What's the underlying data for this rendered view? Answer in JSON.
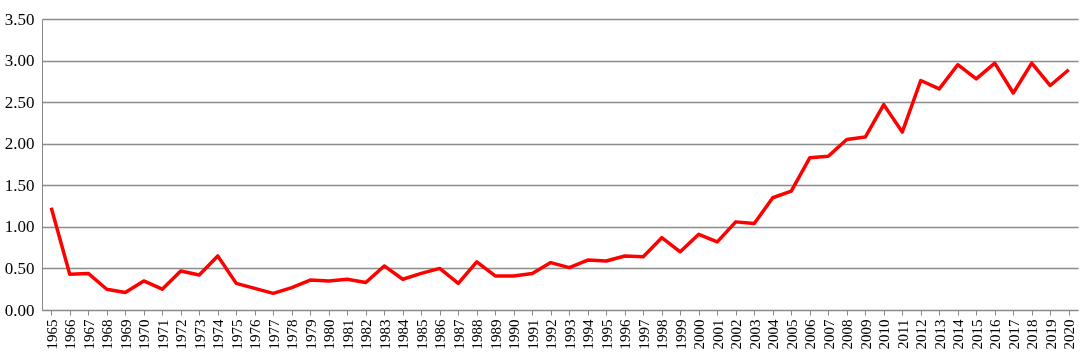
{
  "chart_data": {
    "type": "line",
    "categories": [
      "1965",
      "1966",
      "1967",
      "1968",
      "1969",
      "1970",
      "1971",
      "1972",
      "1973",
      "1974",
      "1975",
      "1976",
      "1977",
      "1978",
      "1979",
      "1980",
      "1981",
      "1982",
      "1983",
      "1984",
      "1985",
      "1986",
      "1987",
      "1988",
      "1989",
      "1990",
      "1991",
      "1992",
      "1993",
      "1994",
      "1995",
      "1996",
      "1997",
      "1998",
      "1999",
      "2000",
      "2001",
      "2002",
      "2003",
      "2004",
      "2005",
      "2006",
      "2007",
      "2008",
      "2009",
      "2010",
      "2011",
      "2012",
      "2013",
      "2014",
      "2015",
      "2016",
      "2017",
      "2018",
      "2019",
      "2020"
    ],
    "series": [
      {
        "color": "#ff0000",
        "values": [
          1.23,
          0.43,
          0.44,
          0.25,
          0.21,
          0.35,
          0.25,
          0.47,
          0.42,
          0.65,
          0.32,
          0.26,
          0.2,
          0.27,
          0.36,
          0.35,
          0.37,
          0.33,
          0.53,
          0.37,
          0.44,
          0.5,
          0.32,
          0.58,
          0.41,
          0.41,
          0.44,
          0.57,
          0.51,
          0.6,
          0.59,
          0.65,
          0.64,
          0.87,
          0.7,
          0.91,
          0.82,
          1.06,
          1.04,
          1.35,
          1.43,
          1.83,
          1.85,
          2.05,
          2.08,
          2.47,
          2.14,
          2.76,
          2.66,
          2.95,
          2.78,
          2.97,
          2.61,
          2.97,
          2.7,
          2.89
        ]
      }
    ],
    "ylim": [
      0,
      3.5
    ],
    "yticks": [
      {
        "value": 0,
        "label": "0.00"
      },
      {
        "value": 0.5,
        "label": "0.50"
      },
      {
        "value": 1,
        "label": "1.00"
      },
      {
        "value": 1.5,
        "label": "1.50"
      },
      {
        "value": 2,
        "label": "2.00"
      },
      {
        "value": 2.5,
        "label": "2.50"
      },
      {
        "value": 3,
        "label": "3.00"
      },
      {
        "value": 3.5,
        "label": "3.50"
      }
    ],
    "grid": "y",
    "marker": "none",
    "line_style": "solid",
    "legend": false
  }
}
